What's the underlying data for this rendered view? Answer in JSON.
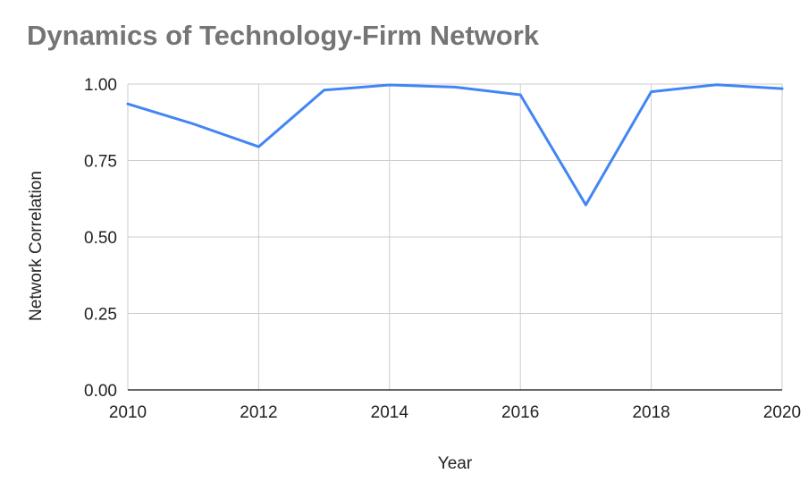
{
  "chart_data": {
    "type": "line",
    "title": "Dynamics of Technology-Firm Network",
    "xlabel": "Year",
    "ylabel": "Network Correlation",
    "x": [
      2010,
      2011,
      2012,
      2013,
      2014,
      2015,
      2016,
      2017,
      2018,
      2019,
      2020
    ],
    "series": [
      {
        "values": [
          0.935,
          0.87,
          0.795,
          0.98,
          0.997,
          0.99,
          0.965,
          0.605,
          0.975,
          0.998,
          0.985
        ]
      }
    ],
    "xlim": [
      2010,
      2020
    ],
    "ylim": [
      0,
      1
    ],
    "x_ticks": [
      "2010",
      "2012",
      "2014",
      "2016",
      "2018",
      "2020"
    ],
    "y_ticks": [
      "0.00",
      "0.25",
      "0.50",
      "0.75",
      "1.00"
    ],
    "grid": true,
    "legend": "none",
    "colors": {
      "line": "#4285f4",
      "grid": "#cccccc",
      "axis": "#333333",
      "title": "#757575"
    }
  }
}
